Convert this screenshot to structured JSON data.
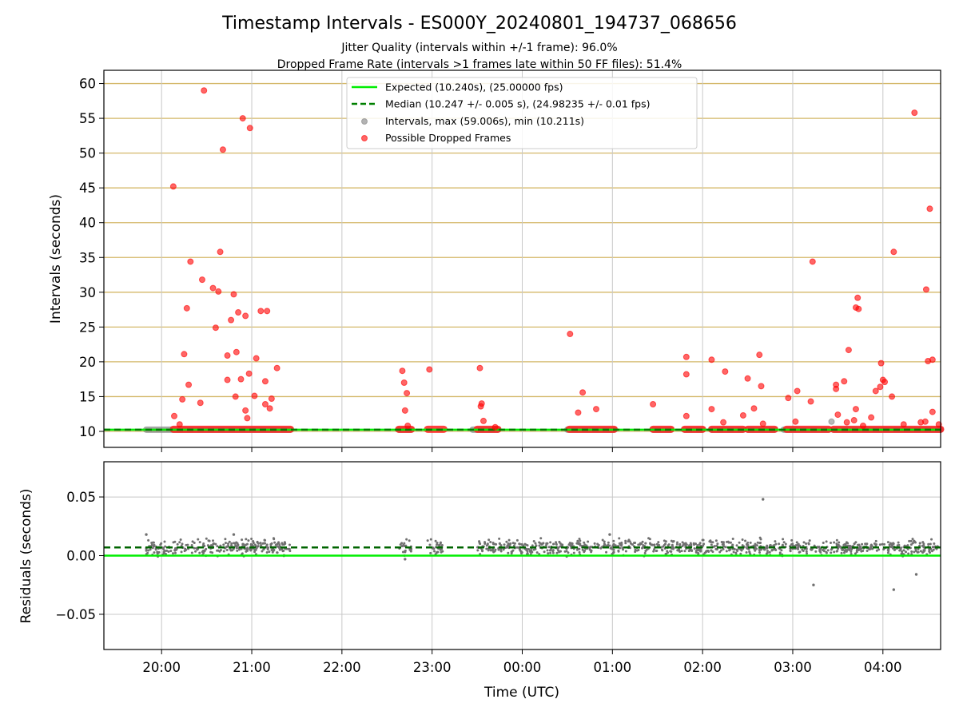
{
  "chart_data": [
    {
      "type": "scatter",
      "title": "Timestamp Intervals - ES000Y_20240801_194737_068656",
      "subtitle_lines": [
        "Jitter Quality (intervals within +/-1 frame): 96.0%",
        "Dropped Frame Rate (intervals >1 frames late within 50 FF files): 51.4%"
      ],
      "xlabel": "",
      "ylabel": "Intervals (seconds)",
      "x_unit": "hours since 2024-08-01 00:00 UTC",
      "xlim": [
        19.36,
        28.64
      ],
      "ylim": [
        7.7,
        61.9
      ],
      "yticks": [
        10,
        15,
        20,
        25,
        30,
        35,
        40,
        45,
        50,
        55,
        60
      ],
      "xticks": [
        20,
        21,
        22,
        23,
        24,
        25,
        26,
        27,
        28
      ],
      "grid": true,
      "horizontal_gridlines_color": "#d4b86a",
      "legend_position": "top-center",
      "legend": [
        {
          "label": "Expected (10.240s), (25.00000 fps)",
          "kind": "line",
          "color": "#00ee00",
          "dash": false
        },
        {
          "label": "Median (10.247 +/- 0.005 s), (24.98235 +/- 0.01 fps)",
          "kind": "line",
          "color": "#008000",
          "dash": true
        },
        {
          "label": "Intervals, max (59.006s), min (10.211s)",
          "kind": "point",
          "color": "#808080"
        },
        {
          "label": "Possible Dropped Frames",
          "kind": "point",
          "color": "#ff0000"
        }
      ],
      "expected_interval": 10.24,
      "median_interval": 10.247,
      "normal_interval_segments": [
        [
          19.83,
          21.43
        ],
        [
          22.63,
          22.77
        ],
        [
          23.45,
          23.73
        ],
        [
          24.5,
          25.02
        ],
        [
          25.45,
          25.65
        ],
        [
          25.8,
          26.0
        ],
        [
          26.1,
          26.45
        ],
        [
          26.5,
          26.8
        ],
        [
          26.9,
          27.4
        ],
        [
          27.45,
          28.64
        ]
      ],
      "dropped_cluster_segments": [
        [
          20.13,
          21.43
        ],
        [
          22.63,
          22.77
        ],
        [
          22.95,
          23.13
        ],
        [
          23.5,
          23.73
        ],
        [
          24.52,
          25.02
        ],
        [
          25.45,
          25.65
        ],
        [
          25.8,
          26.0
        ],
        [
          26.1,
          26.45
        ],
        [
          26.5,
          26.8
        ],
        [
          26.93,
          27.4
        ],
        [
          27.45,
          28.64
        ]
      ],
      "dropped_points": [
        [
          20.13,
          45.2
        ],
        [
          20.14,
          12.2
        ],
        [
          20.2,
          11.0
        ],
        [
          20.23,
          14.6
        ],
        [
          20.25,
          21.1
        ],
        [
          20.28,
          27.7
        ],
        [
          20.3,
          16.7
        ],
        [
          20.32,
          34.4
        ],
        [
          20.43,
          14.1
        ],
        [
          20.45,
          31.8
        ],
        [
          20.47,
          59.0
        ],
        [
          20.57,
          30.6
        ],
        [
          20.6,
          24.9
        ],
        [
          20.63,
          30.1
        ],
        [
          20.65,
          35.8
        ],
        [
          20.68,
          50.5
        ],
        [
          20.73,
          20.9
        ],
        [
          20.73,
          17.4
        ],
        [
          20.77,
          26.0
        ],
        [
          20.8,
          29.7
        ],
        [
          20.82,
          15.0
        ],
        [
          20.83,
          21.4
        ],
        [
          20.85,
          27.1
        ],
        [
          20.88,
          17.5
        ],
        [
          20.9,
          55.0
        ],
        [
          20.93,
          13.0
        ],
        [
          20.93,
          26.6
        ],
        [
          20.95,
          11.9
        ],
        [
          20.97,
          18.3
        ],
        [
          20.98,
          53.6
        ],
        [
          21.03,
          15.1
        ],
        [
          21.05,
          20.5
        ],
        [
          21.1,
          27.3
        ],
        [
          21.15,
          13.9
        ],
        [
          21.15,
          17.2
        ],
        [
          21.17,
          27.3
        ],
        [
          21.2,
          13.3
        ],
        [
          21.22,
          14.7
        ],
        [
          21.28,
          19.1
        ],
        [
          22.67,
          18.7
        ],
        [
          22.69,
          17.0
        ],
        [
          22.7,
          13.0
        ],
        [
          22.72,
          15.5
        ],
        [
          22.73,
          10.8
        ],
        [
          22.97,
          18.9
        ],
        [
          23.53,
          19.1
        ],
        [
          23.54,
          13.6
        ],
        [
          23.55,
          14.0
        ],
        [
          23.57,
          11.5
        ],
        [
          23.7,
          10.6
        ],
        [
          24.53,
          24.0
        ],
        [
          24.62,
          12.7
        ],
        [
          24.67,
          15.6
        ],
        [
          24.82,
          13.2
        ],
        [
          25.45,
          13.9
        ],
        [
          25.82,
          20.7
        ],
        [
          25.82,
          18.2
        ],
        [
          25.82,
          12.2
        ],
        [
          26.1,
          13.2
        ],
        [
          26.1,
          20.3
        ],
        [
          26.23,
          11.3
        ],
        [
          26.25,
          18.6
        ],
        [
          26.45,
          12.3
        ],
        [
          26.5,
          17.6
        ],
        [
          26.57,
          13.3
        ],
        [
          26.63,
          21.0
        ],
        [
          26.65,
          16.5
        ],
        [
          26.67,
          11.1
        ],
        [
          26.95,
          14.8
        ],
        [
          27.03,
          11.4
        ],
        [
          27.05,
          15.8
        ],
        [
          27.2,
          14.3
        ],
        [
          27.22,
          34.4
        ],
        [
          27.48,
          16.7
        ],
        [
          27.48,
          16.1
        ],
        [
          27.5,
          12.4
        ],
        [
          27.57,
          17.2
        ],
        [
          27.6,
          11.3
        ],
        [
          27.62,
          21.7
        ],
        [
          27.68,
          11.6
        ],
        [
          27.7,
          27.8
        ],
        [
          27.7,
          13.2
        ],
        [
          27.72,
          29.2
        ],
        [
          27.73,
          27.6
        ],
        [
          27.78,
          10.8
        ],
        [
          27.87,
          12.0
        ],
        [
          27.92,
          15.8
        ],
        [
          27.97,
          16.4
        ],
        [
          27.98,
          19.8
        ],
        [
          28.0,
          17.4
        ],
        [
          28.02,
          17.1
        ],
        [
          28.1,
          15.0
        ],
        [
          28.12,
          35.8
        ],
        [
          28.23,
          11.0
        ],
        [
          28.35,
          55.8
        ],
        [
          28.42,
          11.3
        ],
        [
          28.47,
          11.4
        ],
        [
          28.48,
          30.4
        ],
        [
          28.5,
          20.1
        ],
        [
          28.52,
          42.0
        ],
        [
          28.55,
          20.3
        ],
        [
          28.55,
          12.8
        ],
        [
          28.62,
          11.0
        ]
      ],
      "outlier_normal_points": [
        [
          27.43,
          11.4
        ]
      ]
    },
    {
      "type": "scatter",
      "title": "",
      "xlabel": "Time (UTC)",
      "ylabel": "Residuals (seconds)",
      "xlim": [
        19.36,
        28.64
      ],
      "ylim": [
        -0.08,
        0.08
      ],
      "yticks": [
        0.05,
        0.0,
        -0.05
      ],
      "ytick_labels": [
        "0.05",
        "0.00",
        "−0.05"
      ],
      "xticks": [
        20,
        21,
        22,
        23,
        24,
        25,
        26,
        27,
        28
      ],
      "xtick_labels": [
        "20:00",
        "21:00",
        "22:00",
        "23:00",
        "00:00",
        "01:00",
        "02:00",
        "03:00",
        "04:00"
      ],
      "grid": true,
      "expected_residual": 0.0,
      "median_residual": 0.007,
      "residual_spread": 0.005,
      "residual_dense_segments": [
        [
          19.83,
          21.43
        ],
        [
          22.63,
          22.77
        ],
        [
          22.95,
          23.13
        ],
        [
          23.5,
          28.64
        ]
      ],
      "residual_outliers": [
        [
          19.83,
          0.018
        ],
        [
          20.8,
          0.018
        ],
        [
          22.7,
          -0.003
        ],
        [
          26.67,
          0.048
        ],
        [
          27.23,
          -0.025
        ],
        [
          28.12,
          -0.029
        ],
        [
          28.37,
          -0.016
        ],
        [
          24.97,
          0.018
        ]
      ]
    }
  ]
}
